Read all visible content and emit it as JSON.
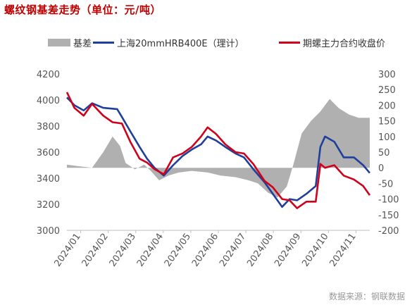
{
  "title": "螺纹钢基差走势（单位：元/吨）",
  "source": "数据来源：钢联数据",
  "legend": [
    {
      "label": "基差",
      "type": "area",
      "color": "#b0b0b0"
    },
    {
      "label": "上海20mmHRB400E（理计）",
      "type": "line",
      "color": "#1f3f9a"
    },
    {
      "label": "期螺主力合约收盘价",
      "type": "line",
      "color": "#d0021b"
    }
  ],
  "chart_data": {
    "type": "line",
    "x_ticks": [
      "2024/01",
      "2024/02",
      "2024/03",
      "2024/04",
      "2024/05",
      "2024/06",
      "2024/07",
      "2024/08",
      "2024/09",
      "2024/10",
      "2024/11"
    ],
    "left_axis": {
      "ylim": [
        3000,
        4200
      ],
      "ticks": [
        3000,
        3200,
        3400,
        3600,
        3800,
        4000,
        4200
      ]
    },
    "right_axis": {
      "ylim": [
        -200,
        300
      ],
      "ticks": [
        -200,
        -150,
        -100,
        -50,
        0,
        50,
        100,
        150,
        200,
        250,
        300
      ]
    },
    "x_range": [
      "2024/01/02",
      "2024/11/22"
    ],
    "grid": false,
    "series": [
      {
        "name": "基差",
        "kind": "area",
        "axis": "right",
        "color": "#b0b0b0",
        "points": [
          [
            "2024/01/02",
            10
          ],
          [
            "2024/01/15",
            5
          ],
          [
            "2024/01/29",
            0
          ],
          [
            "2024/02/10",
            50
          ],
          [
            "2024/02/20",
            100
          ],
          [
            "2024/02/28",
            70
          ],
          [
            "2024/03/05",
            15
          ],
          [
            "2024/03/15",
            -5
          ],
          [
            "2024/03/25",
            10
          ],
          [
            "2024/04/01",
            -10
          ],
          [
            "2024/04/10",
            -40
          ],
          [
            "2024/04/20",
            -25
          ],
          [
            "2024/05/01",
            -15
          ],
          [
            "2024/05/15",
            -10
          ],
          [
            "2024/06/01",
            -15
          ],
          [
            "2024/06/15",
            -25
          ],
          [
            "2024/07/01",
            -30
          ],
          [
            "2024/07/15",
            -40
          ],
          [
            "2024/07/25",
            -50
          ],
          [
            "2024/08/05",
            -80
          ],
          [
            "2024/08/15",
            -95
          ],
          [
            "2024/08/25",
            -60
          ],
          [
            "2024/09/01",
            10
          ],
          [
            "2024/09/10",
            110
          ],
          [
            "2024/09/20",
            150
          ],
          [
            "2024/09/30",
            180
          ],
          [
            "2024/10/10",
            220
          ],
          [
            "2024/10/20",
            190
          ],
          [
            "2024/10/31",
            170
          ],
          [
            "2024/11/10",
            160
          ],
          [
            "2024/11/22",
            160
          ]
        ]
      },
      {
        "name": "上海20mmHRB400E（理计）",
        "kind": "line",
        "axis": "left",
        "color": "#1f3f9a",
        "points": [
          [
            "2024/01/02",
            4020
          ],
          [
            "2024/01/10",
            3960
          ],
          [
            "2024/01/20",
            3920
          ],
          [
            "2024/01/29",
            3975
          ],
          [
            "2024/02/10",
            3940
          ],
          [
            "2024/02/25",
            3930
          ],
          [
            "2024/03/01",
            3870
          ],
          [
            "2024/03/10",
            3760
          ],
          [
            "2024/03/20",
            3640
          ],
          [
            "2024/03/28",
            3550
          ],
          [
            "2024/04/05",
            3480
          ],
          [
            "2024/04/15",
            3420
          ],
          [
            "2024/04/25",
            3500
          ],
          [
            "2024/05/05",
            3570
          ],
          [
            "2024/05/15",
            3620
          ],
          [
            "2024/05/25",
            3660
          ],
          [
            "2024/06/01",
            3720
          ],
          [
            "2024/06/10",
            3690
          ],
          [
            "2024/06/20",
            3640
          ],
          [
            "2024/07/01",
            3590
          ],
          [
            "2024/07/10",
            3560
          ],
          [
            "2024/07/20",
            3470
          ],
          [
            "2024/08/01",
            3370
          ],
          [
            "2024/08/10",
            3280
          ],
          [
            "2024/08/20",
            3180
          ],
          [
            "2024/08/28",
            3240
          ],
          [
            "2024/09/05",
            3230
          ],
          [
            "2024/09/15",
            3280
          ],
          [
            "2024/09/25",
            3340
          ],
          [
            "2024/09/30",
            3640
          ],
          [
            "2024/10/05",
            3720
          ],
          [
            "2024/10/15",
            3680
          ],
          [
            "2024/10/25",
            3560
          ],
          [
            "2024/11/05",
            3560
          ],
          [
            "2024/11/15",
            3500
          ],
          [
            "2024/11/22",
            3440
          ]
        ]
      },
      {
        "name": "期螺主力合约收盘价",
        "kind": "line",
        "axis": "left",
        "color": "#d0021b",
        "points": [
          [
            "2024/01/02",
            4060
          ],
          [
            "2024/01/10",
            3940
          ],
          [
            "2024/01/20",
            3880
          ],
          [
            "2024/01/29",
            3970
          ],
          [
            "2024/02/10",
            3880
          ],
          [
            "2024/02/20",
            3830
          ],
          [
            "2024/03/01",
            3820
          ],
          [
            "2024/03/10",
            3680
          ],
          [
            "2024/03/20",
            3550
          ],
          [
            "2024/03/28",
            3520
          ],
          [
            "2024/04/05",
            3470
          ],
          [
            "2024/04/15",
            3430
          ],
          [
            "2024/04/25",
            3560
          ],
          [
            "2024/05/05",
            3590
          ],
          [
            "2024/05/15",
            3640
          ],
          [
            "2024/05/25",
            3720
          ],
          [
            "2024/06/01",
            3790
          ],
          [
            "2024/06/10",
            3740
          ],
          [
            "2024/06/20",
            3660
          ],
          [
            "2024/07/01",
            3600
          ],
          [
            "2024/07/10",
            3590
          ],
          [
            "2024/07/20",
            3510
          ],
          [
            "2024/08/01",
            3380
          ],
          [
            "2024/08/10",
            3330
          ],
          [
            "2024/08/20",
            3240
          ],
          [
            "2024/08/28",
            3230
          ],
          [
            "2024/09/05",
            3170
          ],
          [
            "2024/09/15",
            3220
          ],
          [
            "2024/09/25",
            3220
          ],
          [
            "2024/09/30",
            3510
          ],
          [
            "2024/10/05",
            3480
          ],
          [
            "2024/10/15",
            3500
          ],
          [
            "2024/10/25",
            3420
          ],
          [
            "2024/11/05",
            3390
          ],
          [
            "2024/11/15",
            3340
          ],
          [
            "2024/11/22",
            3270
          ]
        ]
      }
    ]
  }
}
